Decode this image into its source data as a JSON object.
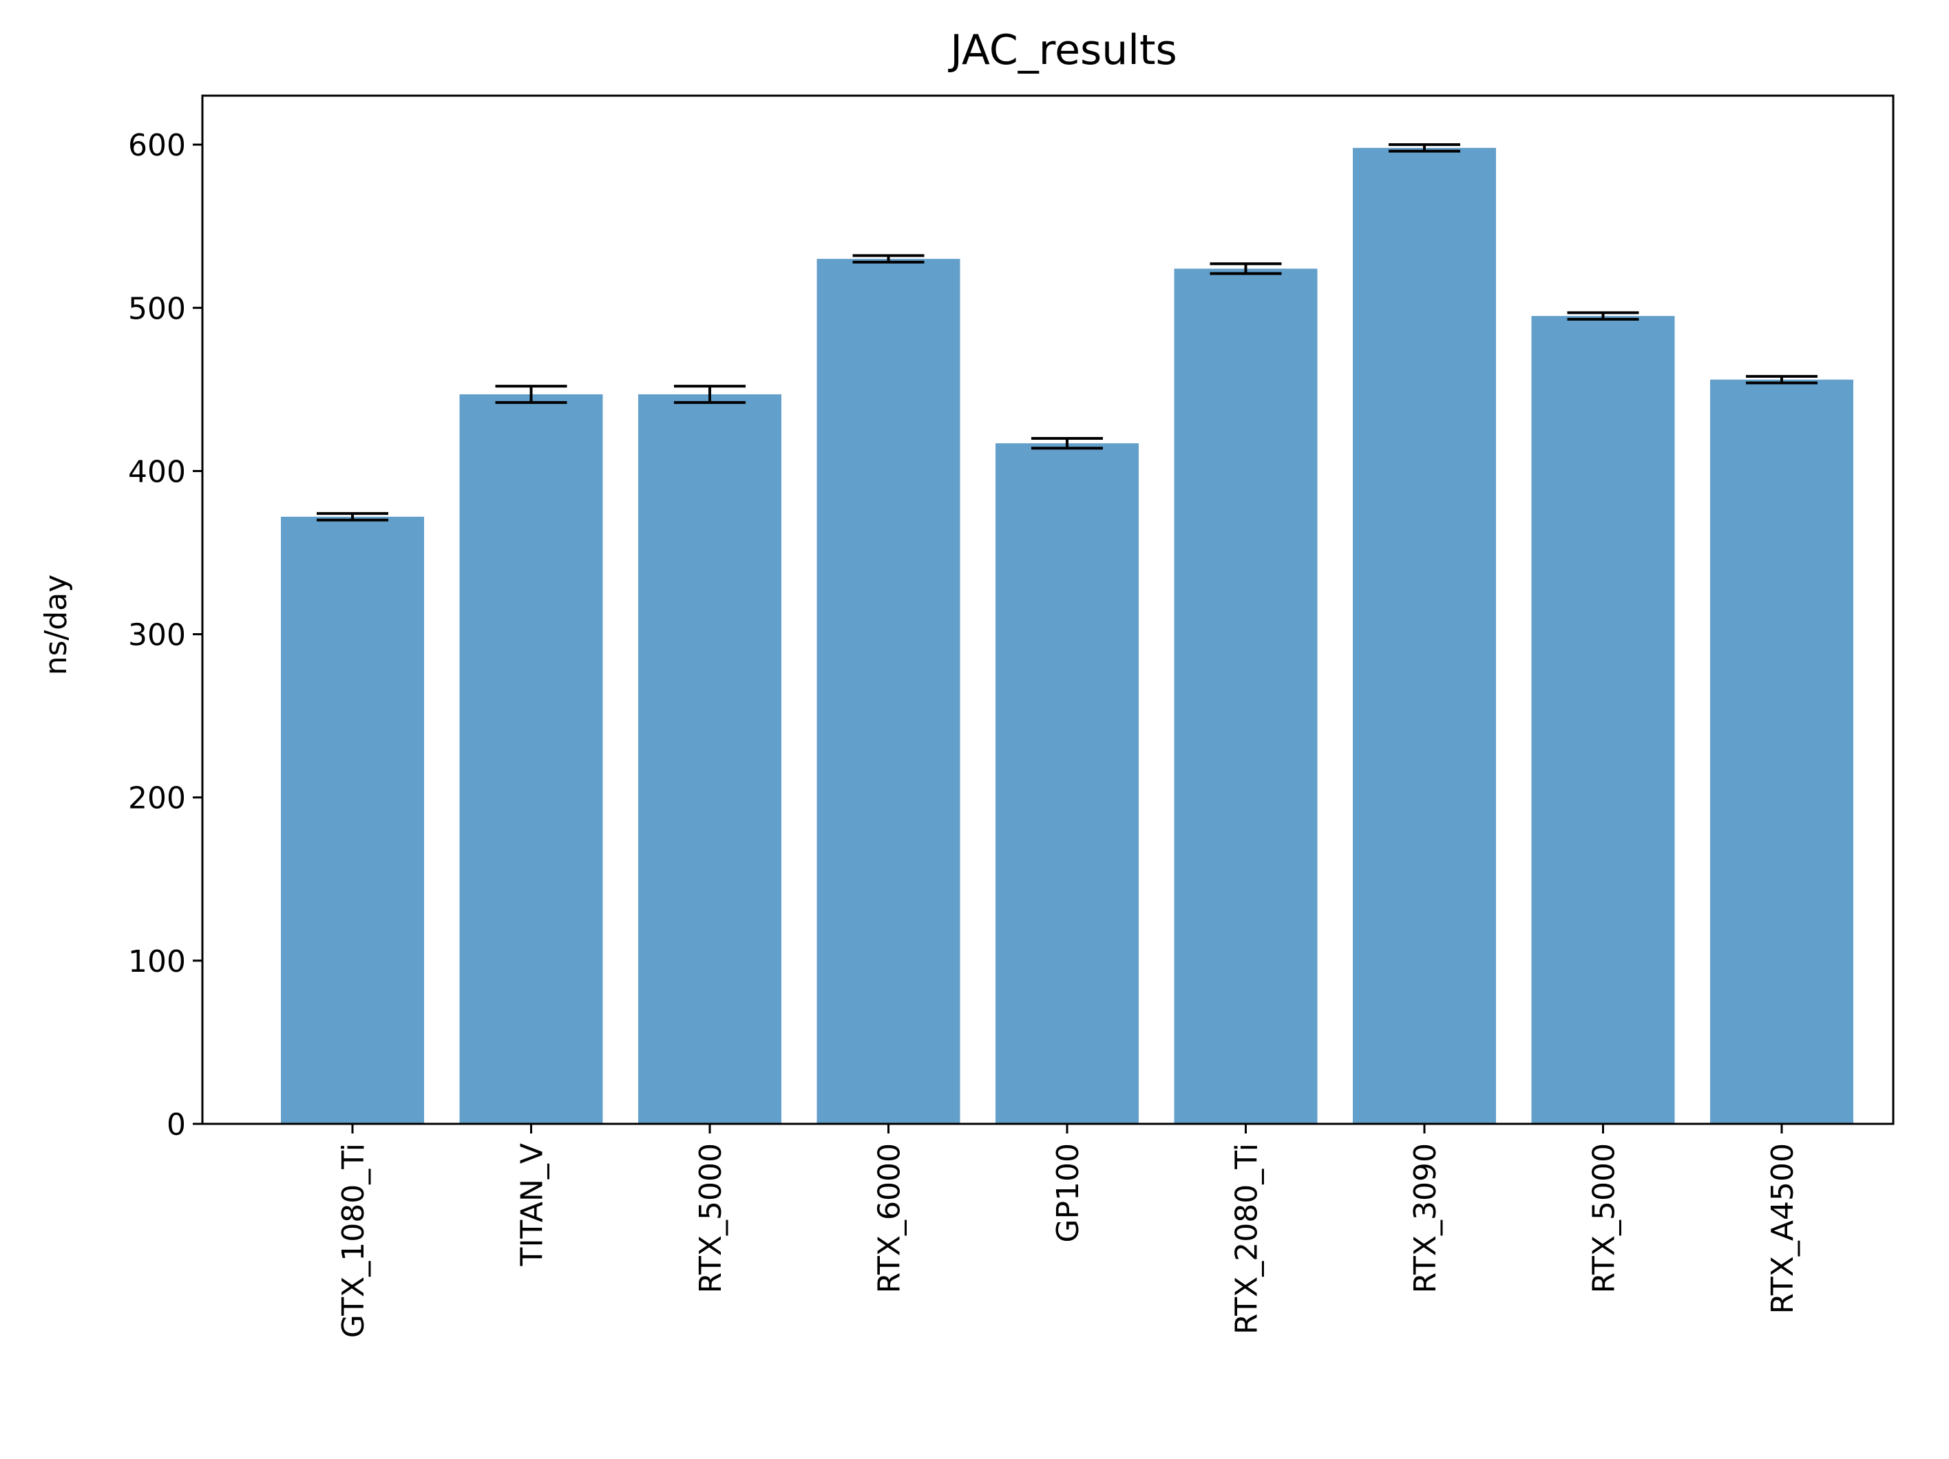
{
  "chart_data": {
    "type": "bar",
    "title": "JAC_results",
    "xlabel": "",
    "ylabel": "ns/day",
    "categories": [
      "GTX_1080_Ti",
      "TITAN_V",
      "RTX_5000",
      "RTX_6000",
      "GP100",
      "RTX_2080_Ti",
      "RTX_3090",
      "RTX_5000",
      "RTX_A4500"
    ],
    "values": [
      372,
      447,
      447,
      530,
      417,
      524,
      598,
      495,
      456
    ],
    "errors": [
      2,
      5,
      5,
      2,
      3,
      3,
      2,
      2,
      2
    ],
    "ylim": [
      0,
      630
    ],
    "yticks": [
      0,
      100,
      200,
      300,
      400,
      500,
      600
    ],
    "grid": false,
    "bar_color": "#629fca",
    "error_color": "#000000"
  }
}
